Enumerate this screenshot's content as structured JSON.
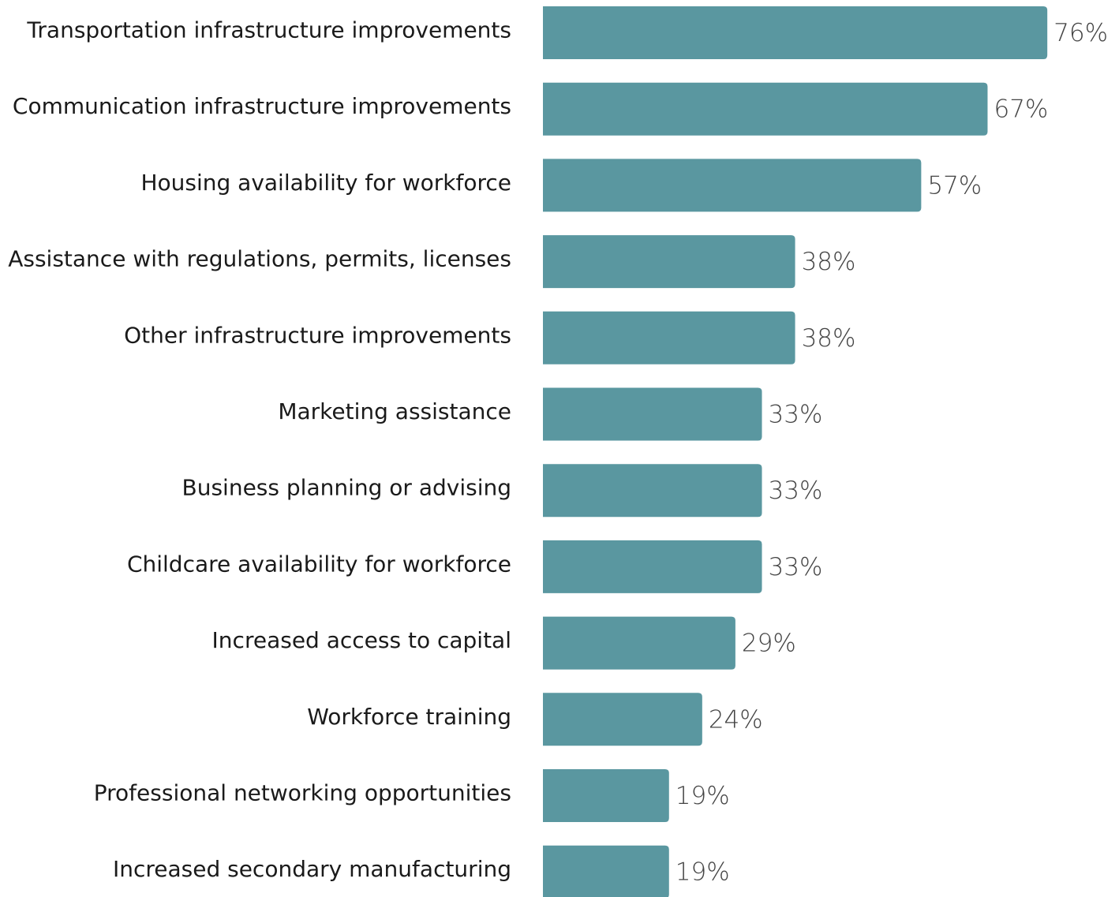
{
  "chart_data": {
    "type": "bar",
    "orientation": "horizontal",
    "color": "#5a97a0",
    "categories": [
      "Transportation infrastructure improvements",
      "Communication infrastructure improvements",
      "Housing availability for workforce",
      "Assistance with regulations, permits, licenses",
      "Other infrastructure improvements",
      "Marketing assistance",
      "Business planning or advising",
      "Childcare availability for workforce",
      "Increased access to capital",
      "Workforce training",
      "Professional networking opportunities",
      "Increased secondary manufacturing"
    ],
    "values": [
      76,
      67,
      57,
      38,
      38,
      33,
      33,
      33,
      29,
      24,
      19,
      19
    ],
    "value_labels": [
      "76%",
      "67%",
      "57%",
      "38%",
      "38%",
      "33%",
      "33%",
      "33%",
      "29%",
      "24%",
      "19%",
      "19%"
    ]
  }
}
